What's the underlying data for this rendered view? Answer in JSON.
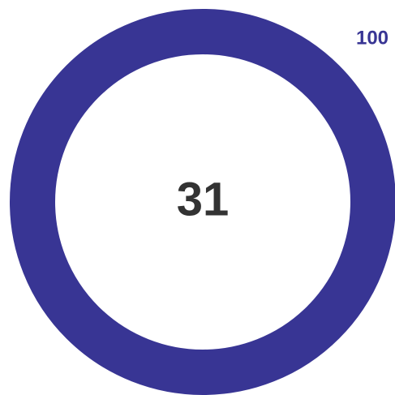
{
  "gauge": {
    "value": 31,
    "max": 100,
    "color": "#383594"
  }
}
